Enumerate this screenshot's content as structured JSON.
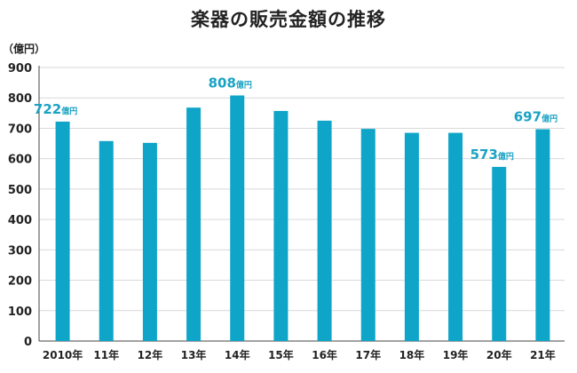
{
  "chart_data": {
    "type": "bar",
    "title": "楽器の販売金額の推移",
    "unit_label": "（億円）",
    "categories": [
      "2010年",
      "11年",
      "12年",
      "13年",
      "14年",
      "15年",
      "16年",
      "17年",
      "18年",
      "19年",
      "20年",
      "21年"
    ],
    "values": [
      722,
      658,
      652,
      768,
      808,
      757,
      725,
      698,
      685,
      685,
      573,
      697
    ],
    "ylim": [
      0,
      900
    ],
    "yticks": [
      0,
      100,
      200,
      300,
      400,
      500,
      600,
      700,
      800,
      900
    ],
    "grid": true,
    "bar_color": "#0ea5c9",
    "label_color": "#1aa2c4",
    "data_labels": [
      {
        "index": 0,
        "value": "722",
        "unit": "億円"
      },
      {
        "index": 4,
        "value": "808",
        "unit": "億円"
      },
      {
        "index": 10,
        "value": "573",
        "unit": "億円"
      },
      {
        "index": 11,
        "value": "697",
        "unit": "億円"
      }
    ]
  }
}
